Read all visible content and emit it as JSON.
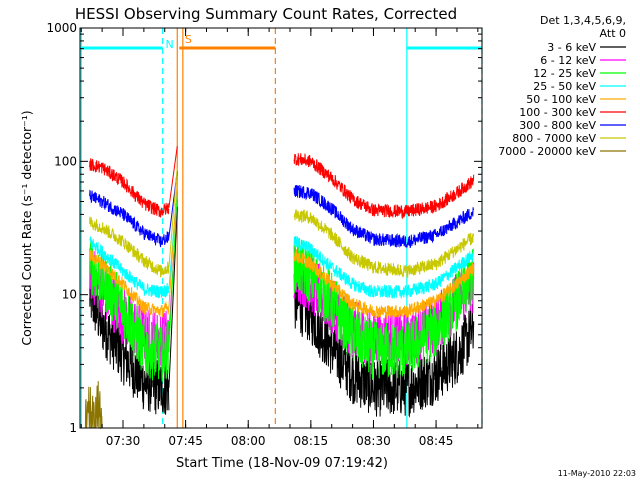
{
  "chart_data": {
    "type": "line",
    "title": "HESSI Observing Summary Count Rates, Corrected",
    "ylabel": "Corrected Count Rate (s⁻¹ detector⁻¹)",
    "xlabel": "Start Time (18-Nov-09 07:19:42)",
    "footer": "11-May-2010 22:03",
    "y_scale": "log",
    "ylim": [
      1,
      1000
    ],
    "xlim": [
      "07:19:42",
      "08:56:00"
    ],
    "y_ticks": [
      {
        "value": 1,
        "label": "1"
      },
      {
        "value": 10,
        "label": "10"
      },
      {
        "value": 100,
        "label": "100"
      },
      {
        "value": 1000,
        "label": "1000"
      }
    ],
    "x_ticks": [
      {
        "value": "07:30",
        "label": "07:30"
      },
      {
        "value": "07:45",
        "label": "07:45"
      },
      {
        "value": "08:00",
        "label": "08:00"
      },
      {
        "value": "08:15",
        "label": "08:15"
      },
      {
        "value": "08:30",
        "label": "08:30"
      },
      {
        "value": "08:45",
        "label": "08:45"
      }
    ],
    "legend_header": [
      "Det 1,3,4,5,6,9,",
      "Att 0"
    ],
    "legend_placement": "right",
    "series": [
      {
        "name": "3 - 6 keV",
        "color": "#000000",
        "seg1": [
          [
            "07:22",
            10
          ],
          [
            "07:25",
            6
          ],
          [
            "07:30",
            3.5
          ],
          [
            "07:35",
            2.2
          ],
          [
            "07:39",
            2.0
          ],
          [
            "07:41",
            2.0
          ]
        ],
        "seg2": [
          [
            "08:11",
            9
          ],
          [
            "08:15",
            7
          ],
          [
            "08:20",
            4
          ],
          [
            "08:25",
            2.5
          ],
          [
            "08:30",
            2.0
          ],
          [
            "08:38",
            2.0
          ],
          [
            "08:45",
            2.5
          ],
          [
            "08:50",
            3.5
          ],
          [
            "08:54",
            5.5
          ]
        ]
      },
      {
        "name": "6 - 12 keV",
        "color": "#ff00ff",
        "seg1": [
          [
            "07:22",
            15
          ],
          [
            "07:25",
            11
          ],
          [
            "07:30",
            7
          ],
          [
            "07:35",
            5.0
          ],
          [
            "07:39",
            4.5
          ],
          [
            "07:41",
            5.0
          ]
        ],
        "seg2": [
          [
            "08:11",
            15
          ],
          [
            "08:15",
            12
          ],
          [
            "08:20",
            8
          ],
          [
            "08:25",
            5.5
          ],
          [
            "08:30",
            4.8
          ],
          [
            "08:38",
            4.6
          ],
          [
            "08:45",
            6
          ],
          [
            "08:50",
            9
          ],
          [
            "08:54",
            12
          ]
        ]
      },
      {
        "name": "12 - 25 keV",
        "color": "#00ff00",
        "seg1": [
          [
            "07:22",
            17
          ],
          [
            "07:25",
            13
          ],
          [
            "07:30",
            8
          ],
          [
            "07:35",
            4.0
          ],
          [
            "07:39",
            3.6
          ],
          [
            "07:41",
            4.0
          ]
        ],
        "seg2": [
          [
            "08:11",
            17
          ],
          [
            "08:15",
            14
          ],
          [
            "08:20",
            9
          ],
          [
            "08:25",
            5.0
          ],
          [
            "08:30",
            3.8
          ],
          [
            "08:38",
            3.8
          ],
          [
            "08:45",
            5.5
          ],
          [
            "08:50",
            9
          ],
          [
            "08:54",
            14
          ]
        ]
      },
      {
        "name": "25 - 50 keV",
        "color": "#00ffff",
        "seg1": [
          [
            "07:22",
            25
          ],
          [
            "07:25",
            21
          ],
          [
            "07:30",
            15
          ],
          [
            "07:35",
            11
          ],
          [
            "07:39",
            10.5
          ],
          [
            "07:41",
            11
          ]
        ],
        "seg2": [
          [
            "08:11",
            25
          ],
          [
            "08:15",
            22
          ],
          [
            "08:20",
            16
          ],
          [
            "08:25",
            12
          ],
          [
            "08:30",
            10.5
          ],
          [
            "08:38",
            10.5
          ],
          [
            "08:45",
            12
          ],
          [
            "08:50",
            16
          ],
          [
            "08:54",
            20
          ]
        ]
      },
      {
        "name": "50 - 100 keV",
        "color": "#ffaa00",
        "seg1": [
          [
            "07:22",
            20
          ],
          [
            "07:25",
            17
          ],
          [
            "07:30",
            12
          ],
          [
            "07:35",
            8.0
          ],
          [
            "07:39",
            7.5
          ],
          [
            "07:41",
            8.0
          ]
        ],
        "seg2": [
          [
            "08:11",
            20
          ],
          [
            "08:15",
            17
          ],
          [
            "08:20",
            12
          ],
          [
            "08:25",
            8.5
          ],
          [
            "08:30",
            7.5
          ],
          [
            "08:38",
            7.5
          ],
          [
            "08:45",
            9
          ],
          [
            "08:50",
            12
          ],
          [
            "08:54",
            16
          ]
        ]
      },
      {
        "name": "100 - 300 keV",
        "color": "#ff0000",
        "seg1": [
          [
            "07:22",
            95
          ],
          [
            "07:25",
            90
          ],
          [
            "07:30",
            70
          ],
          [
            "07:35",
            48
          ],
          [
            "07:39",
            42
          ],
          [
            "07:41",
            45
          ]
        ],
        "seg2": [
          [
            "08:11",
            105
          ],
          [
            "08:15",
            100
          ],
          [
            "08:20",
            75
          ],
          [
            "08:25",
            52
          ],
          [
            "08:30",
            43
          ],
          [
            "08:38",
            42
          ],
          [
            "08:45",
            46
          ],
          [
            "08:50",
            58
          ],
          [
            "08:54",
            72
          ]
        ]
      },
      {
        "name": "300 - 800 keV",
        "color": "#0000ff",
        "seg1": [
          [
            "07:22",
            55
          ],
          [
            "07:25",
            50
          ],
          [
            "07:30",
            40
          ],
          [
            "07:35",
            29
          ],
          [
            "07:39",
            25
          ],
          [
            "07:41",
            27
          ]
        ],
        "seg2": [
          [
            "08:11",
            60
          ],
          [
            "08:15",
            58
          ],
          [
            "08:20",
            44
          ],
          [
            "08:25",
            31
          ],
          [
            "08:30",
            26
          ],
          [
            "08:38",
            25
          ],
          [
            "08:45",
            28
          ],
          [
            "08:50",
            35
          ],
          [
            "08:54",
            42
          ]
        ]
      },
      {
        "name": "800 - 7000 keV",
        "color": "#c8c800",
        "seg1": [
          [
            "07:22",
            35
          ],
          [
            "07:25",
            32
          ],
          [
            "07:30",
            25
          ],
          [
            "07:35",
            18
          ],
          [
            "07:39",
            15
          ],
          [
            "07:41",
            16
          ]
        ],
        "seg2": [
          [
            "08:11",
            40
          ],
          [
            "08:15",
            38
          ],
          [
            "08:20",
            28
          ],
          [
            "08:25",
            19
          ],
          [
            "08:30",
            16
          ],
          [
            "08:38",
            15
          ],
          [
            "08:45",
            17
          ],
          [
            "08:50",
            22
          ],
          [
            "08:54",
            27
          ]
        ]
      },
      {
        "name": "7000 - 20000 keV",
        "color": "#8b7500",
        "seg1": [
          [
            "07:21",
            1.0
          ],
          [
            "07:22",
            1.3
          ],
          [
            "07:23",
            1.0
          ],
          [
            "07:24",
            1.4
          ],
          [
            "07:25",
            1.0
          ]
        ],
        "seg2": []
      }
    ],
    "flare_spike": {
      "start": "07:41",
      "end": "07:43",
      "from": [
        5,
        2.2
      ],
      "to": 130
    },
    "markers": [
      {
        "label": "N",
        "kind": "night",
        "color": "#00ffff",
        "start": "07:19:42",
        "end": "07:39:30"
      },
      {
        "label": "S",
        "kind": "saa",
        "color": "#ff8000",
        "start": "07:43:30",
        "end": "08:06:30"
      },
      {
        "label": "",
        "kind": "night",
        "color": "#00ffff",
        "start": "08:38:00",
        "end": "08:56:00"
      }
    ],
    "solid_lines": [
      {
        "time": "07:20:00",
        "color": "#00ffff"
      },
      {
        "time": "07:43:00",
        "color": "#ff8000"
      },
      {
        "time": "07:44:20",
        "color": "#ff8000"
      },
      {
        "time": "08:38:00",
        "color": "#00ffff"
      }
    ],
    "dashed_lines": [
      {
        "time": "07:39:30",
        "color": "#00ffff"
      },
      {
        "time": "08:06:30",
        "color": "#ff8000"
      },
      {
        "time": "08:56:00",
        "color": "#00ffff"
      }
    ]
  }
}
